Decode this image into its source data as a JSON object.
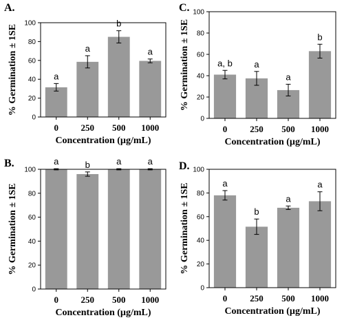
{
  "bar_color": "#999999",
  "chart_data": [
    {
      "type": "bar",
      "panel": "A.",
      "categories": [
        "0",
        "250",
        "500",
        "1000"
      ],
      "values": [
        31.5,
        58.5,
        85,
        59.5
      ],
      "errors": [
        4,
        6.5,
        6.5,
        2
      ],
      "significance": [
        "a",
        "a",
        "b",
        "a"
      ],
      "xlabel": "Concentration (µg/mL)",
      "ylabel": "% Germination ± 1SE",
      "ylim": [
        0,
        100
      ],
      "yticks": [
        0,
        20,
        40,
        60,
        80,
        100
      ]
    },
    {
      "type": "bar",
      "panel": "C.",
      "categories": [
        "0",
        "250",
        "500",
        "1000"
      ],
      "values": [
        41,
        37.5,
        26.5,
        63
      ],
      "errors": [
        4,
        6.5,
        5.5,
        6.5
      ],
      "significance": [
        "a, b",
        "a",
        "a",
        "b"
      ],
      "xlabel": "Concentration (µg/mL)",
      "ylabel": "% Germination ± 1SE",
      "ylim": [
        0,
        100
      ],
      "yticks": [
        0,
        20,
        40,
        60,
        80,
        100
      ]
    },
    {
      "type": "bar",
      "panel": "B.",
      "categories": [
        "0",
        "250",
        "500",
        "1000"
      ],
      "values": [
        100,
        96,
        100,
        100
      ],
      "errors": [
        0.5,
        1.8,
        0.5,
        0.5
      ],
      "significance": [
        "a",
        "b",
        "a",
        "a"
      ],
      "xlabel": "Concentration (µg/mL)",
      "ylabel": "% Germination ± 1SE",
      "ylim": [
        0,
        100
      ],
      "yticks": [
        0,
        20,
        40,
        60,
        80,
        100
      ]
    },
    {
      "type": "bar",
      "panel": "D.",
      "categories": [
        "0",
        "250",
        "500",
        "1000"
      ],
      "values": [
        78,
        51.5,
        67.5,
        73
      ],
      "errors": [
        4,
        6.5,
        1.5,
        8
      ],
      "significance": [
        "a",
        "b",
        "a",
        "a"
      ],
      "xlabel": "Concentration (µg/mL)",
      "ylabel": "% Germination ± 1SE",
      "ylim": [
        0,
        100
      ],
      "yticks": [
        0,
        20,
        40,
        60,
        80,
        100
      ]
    }
  ]
}
